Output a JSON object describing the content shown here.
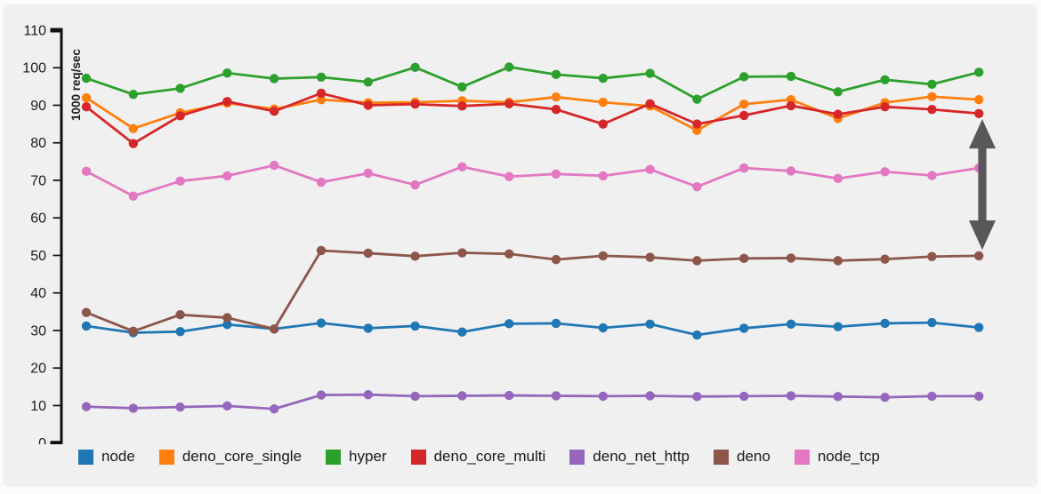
{
  "chart_data": {
    "type": "line",
    "title": "",
    "xlabel": "",
    "ylabel": "1000 req/sec",
    "ylim": [
      0,
      110
    ],
    "yticks": [
      0,
      10,
      20,
      30,
      40,
      50,
      60,
      70,
      80,
      90,
      100,
      110
    ],
    "grid": false,
    "legend_position": "bottom",
    "x_point_count": 20,
    "series": [
      {
        "name": "node",
        "color": "#1f77b4",
        "values": [
          31.2,
          29.4,
          29.7,
          31.6,
          30.4,
          32.0,
          30.6,
          31.2,
          29.6,
          31.8,
          31.9,
          30.7,
          31.7,
          28.8,
          30.6,
          31.7,
          31.0,
          31.9,
          32.1,
          30.8
        ]
      },
      {
        "name": "deno_core_single",
        "color": "#ff7f0e",
        "values": [
          92.0,
          83.8,
          88.0,
          90.6,
          89.0,
          91.5,
          90.7,
          90.8,
          91.2,
          90.8,
          92.2,
          90.8,
          89.8,
          83.3,
          90.3,
          91.5,
          86.5,
          90.7,
          92.3,
          91.5
        ]
      },
      {
        "name": "hyper",
        "color": "#2ca02c",
        "values": [
          97.2,
          92.9,
          94.5,
          98.6,
          97.1,
          97.5,
          96.2,
          100.1,
          94.9,
          100.2,
          98.2,
          97.2,
          98.5,
          91.6,
          97.6,
          97.7,
          93.6,
          96.8,
          95.6,
          98.8
        ]
      },
      {
        "name": "deno_core_multi",
        "color": "#d62728",
        "values": [
          89.6,
          79.8,
          87.2,
          91.0,
          88.4,
          93.2,
          90.0,
          90.3,
          89.8,
          90.4,
          88.9,
          85.0,
          90.4,
          85.0,
          87.3,
          89.9,
          87.6,
          89.6,
          88.9,
          87.8
        ]
      },
      {
        "name": "deno_net_http",
        "color": "#9467bd",
        "values": [
          9.7,
          9.3,
          9.6,
          9.9,
          9.1,
          12.8,
          12.9,
          12.5,
          12.6,
          12.7,
          12.6,
          12.5,
          12.6,
          12.4,
          12.5,
          12.6,
          12.4,
          12.2,
          12.5,
          12.5
        ]
      },
      {
        "name": "deno",
        "color": "#8c564b",
        "values": [
          34.8,
          29.8,
          34.2,
          33.4,
          30.4,
          51.3,
          50.6,
          49.8,
          50.7,
          50.4,
          48.9,
          49.9,
          49.5,
          48.6,
          49.2,
          49.3,
          48.6,
          49.0,
          49.7,
          49.9
        ]
      },
      {
        "name": "node_tcp",
        "color": "#e377c2",
        "values": [
          72.4,
          65.8,
          69.8,
          71.2,
          74.0,
          69.5,
          71.9,
          68.8,
          73.6,
          71.0,
          71.7,
          71.2,
          72.9,
          68.3,
          73.3,
          72.5,
          70.5,
          72.3,
          71.3,
          73.3
        ]
      }
    ],
    "annotation_arrow": {
      "description": "vertical double-headed arrow at right edge between deno_core_multi and deno lines",
      "from_value": 86.3,
      "to_value": 51.5,
      "color": "#58585a"
    }
  },
  "legend": {
    "items": [
      "node",
      "deno_core_single",
      "hyper",
      "deno_core_multi",
      "deno_net_http",
      "deno",
      "node_tcp"
    ]
  }
}
